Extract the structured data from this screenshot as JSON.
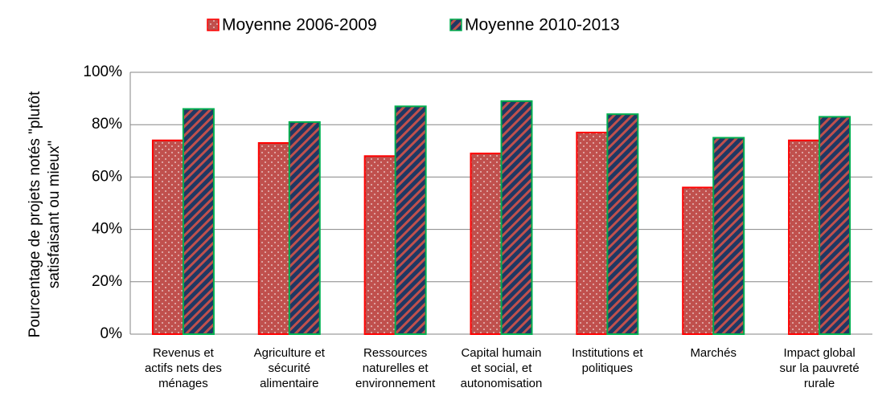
{
  "chart_data": {
    "type": "bar",
    "ylabel": "Pourcentage de projets notés \"plutôt\nsatisfaisant ou mieux\"",
    "categories": [
      "Revenus et\nactifs nets des\nménages",
      "Agriculture et\nsécurité\nalimentaire",
      "Ressources\nnaturelles et\nenvironnement",
      "Capital humain\net social, et\nautonomisation",
      "Institutions et\npolitiques",
      "Marchés",
      "Impact global\nsur la pauvreté\nrurale"
    ],
    "series": [
      {
        "name": "Moyenne 2006-2009",
        "color": "#c0504d",
        "edgecolor": "#ff0000",
        "values": [
          74,
          73,
          68,
          69,
          77,
          56,
          74
        ]
      },
      {
        "name": "Moyenne 2010-2013",
        "color": "#1f3864",
        "edgecolor": "#00b050",
        "values": [
          86,
          81,
          87,
          89,
          84,
          75,
          83
        ]
      }
    ],
    "ylim": [
      0,
      100
    ],
    "yticks": [
      {
        "value": 0,
        "label": "0%"
      },
      {
        "value": 20,
        "label": "20%"
      },
      {
        "value": 40,
        "label": "40%"
      },
      {
        "value": 60,
        "label": "60%"
      },
      {
        "value": 80,
        "label": "80%"
      },
      {
        "value": 100,
        "label": "100%"
      }
    ],
    "grid": true,
    "legend": "top"
  }
}
